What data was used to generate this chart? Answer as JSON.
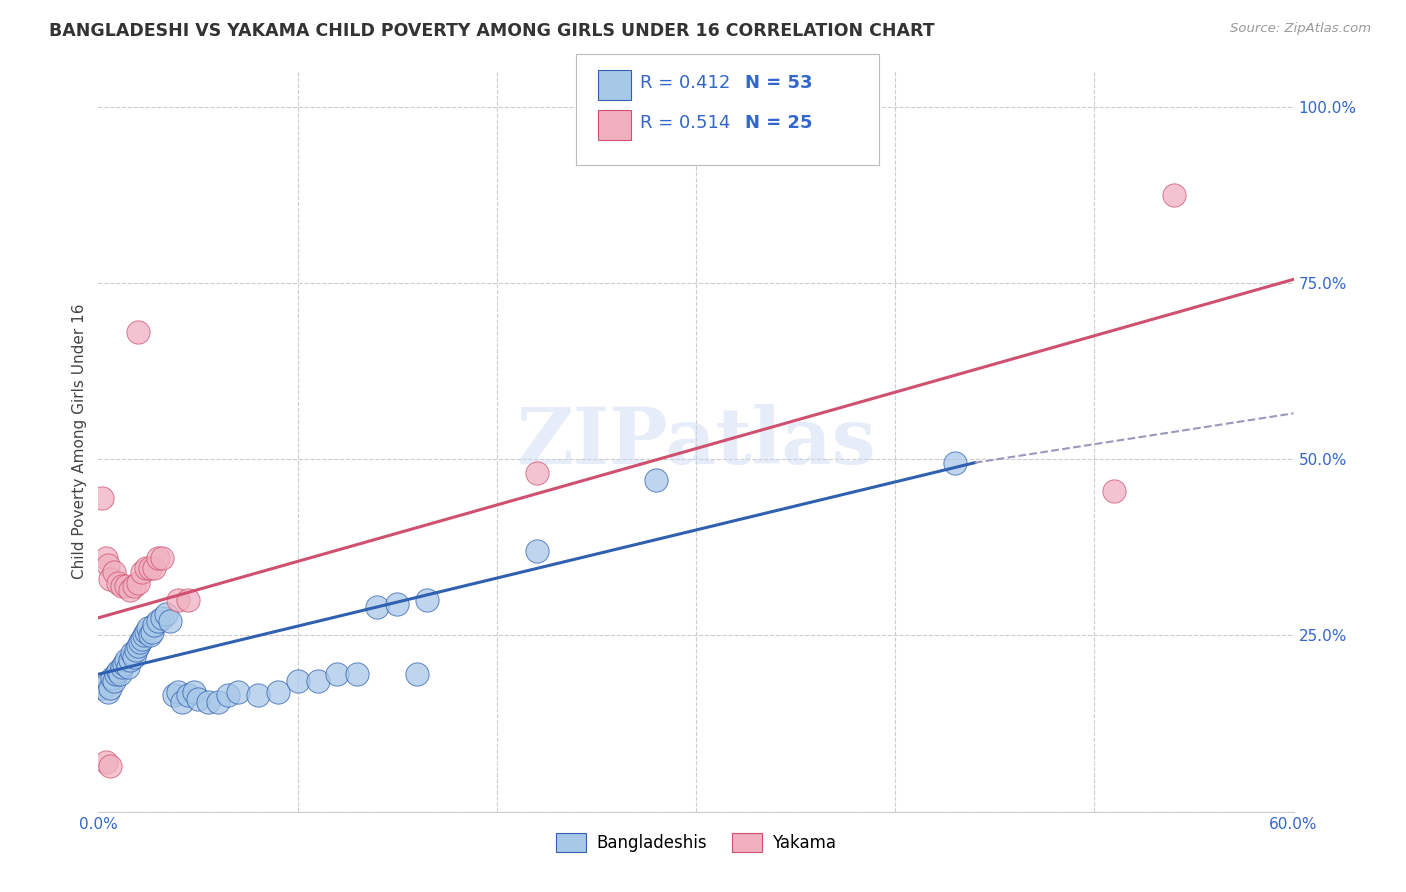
{
  "title": "BANGLADESHI VS YAKAMA CHILD POVERTY AMONG GIRLS UNDER 16 CORRELATION CHART",
  "source": "Source: ZipAtlas.com",
  "ylabel": "Child Poverty Among Girls Under 16",
  "xlim": [
    0.0,
    0.6
  ],
  "ylim": [
    0.0,
    1.05
  ],
  "watermark": "ZIPatlas",
  "legend_blue_r": "R = 0.412",
  "legend_blue_n": "N = 53",
  "legend_pink_r": "R = 0.514",
  "legend_pink_n": "N = 25",
  "blue_color": "#A8C8E8",
  "pink_color": "#F0B0C0",
  "line_blue": "#3060B0",
  "line_pink": "#D05070",
  "line_dashed_color": "#9999BB",
  "blue_scatter": [
    [
      0.002,
      0.175
    ],
    [
      0.004,
      0.18
    ],
    [
      0.005,
      0.17
    ],
    [
      0.006,
      0.175
    ],
    [
      0.007,
      0.19
    ],
    [
      0.008,
      0.185
    ],
    [
      0.009,
      0.195
    ],
    [
      0.01,
      0.2
    ],
    [
      0.011,
      0.195
    ],
    [
      0.012,
      0.205
    ],
    [
      0.013,
      0.21
    ],
    [
      0.014,
      0.215
    ],
    [
      0.015,
      0.205
    ],
    [
      0.016,
      0.215
    ],
    [
      0.017,
      0.225
    ],
    [
      0.018,
      0.22
    ],
    [
      0.019,
      0.23
    ],
    [
      0.02,
      0.235
    ],
    [
      0.021,
      0.24
    ],
    [
      0.022,
      0.245
    ],
    [
      0.023,
      0.25
    ],
    [
      0.024,
      0.255
    ],
    [
      0.025,
      0.26
    ],
    [
      0.026,
      0.25
    ],
    [
      0.027,
      0.255
    ],
    [
      0.028,
      0.265
    ],
    [
      0.03,
      0.27
    ],
    [
      0.032,
      0.275
    ],
    [
      0.034,
      0.28
    ],
    [
      0.036,
      0.27
    ],
    [
      0.038,
      0.165
    ],
    [
      0.04,
      0.17
    ],
    [
      0.042,
      0.155
    ],
    [
      0.045,
      0.165
    ],
    [
      0.048,
      0.17
    ],
    [
      0.05,
      0.16
    ],
    [
      0.055,
      0.155
    ],
    [
      0.06,
      0.155
    ],
    [
      0.065,
      0.165
    ],
    [
      0.07,
      0.17
    ],
    [
      0.08,
      0.165
    ],
    [
      0.09,
      0.17
    ],
    [
      0.1,
      0.185
    ],
    [
      0.11,
      0.185
    ],
    [
      0.12,
      0.195
    ],
    [
      0.13,
      0.195
    ],
    [
      0.14,
      0.29
    ],
    [
      0.15,
      0.295
    ],
    [
      0.16,
      0.195
    ],
    [
      0.165,
      0.3
    ],
    [
      0.22,
      0.37
    ],
    [
      0.28,
      0.47
    ],
    [
      0.43,
      0.495
    ]
  ],
  "pink_scatter": [
    [
      0.002,
      0.445
    ],
    [
      0.004,
      0.36
    ],
    [
      0.005,
      0.35
    ],
    [
      0.006,
      0.33
    ],
    [
      0.008,
      0.34
    ],
    [
      0.01,
      0.325
    ],
    [
      0.012,
      0.32
    ],
    [
      0.014,
      0.32
    ],
    [
      0.016,
      0.315
    ],
    [
      0.018,
      0.32
    ],
    [
      0.02,
      0.325
    ],
    [
      0.022,
      0.34
    ],
    [
      0.024,
      0.345
    ],
    [
      0.026,
      0.345
    ],
    [
      0.028,
      0.345
    ],
    [
      0.03,
      0.36
    ],
    [
      0.032,
      0.36
    ],
    [
      0.04,
      0.3
    ],
    [
      0.045,
      0.3
    ],
    [
      0.02,
      0.68
    ],
    [
      0.22,
      0.48
    ],
    [
      0.51,
      0.455
    ],
    [
      0.54,
      0.875
    ],
    [
      0.004,
      0.07
    ],
    [
      0.006,
      0.065
    ]
  ],
  "blue_line_x": [
    0.0,
    0.44
  ],
  "blue_line_y": [
    0.195,
    0.495
  ],
  "dashed_line_x": [
    0.44,
    0.6
  ],
  "dashed_line_y": [
    0.495,
    0.565
  ],
  "pink_line_x": [
    0.0,
    0.6
  ],
  "pink_line_y": [
    0.275,
    0.755
  ]
}
